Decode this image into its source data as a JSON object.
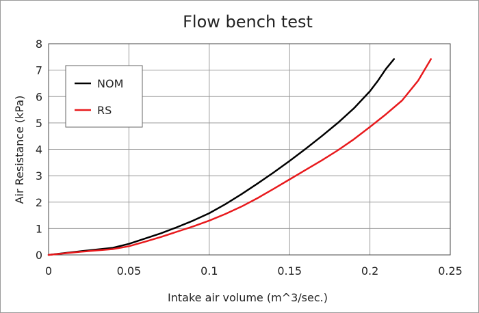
{
  "chart_data": {
    "type": "line",
    "title": "Flow bench test",
    "xlabel": "Intake air volume (m^3/sec.)",
    "ylabel": "Air Resistance (kPa)",
    "xlim": [
      0,
      0.25
    ],
    "ylim": [
      0,
      8
    ],
    "x_ticks": [
      "0",
      "0.05",
      "0.1",
      "0.15",
      "0.2",
      "0.25"
    ],
    "y_ticks": [
      "0",
      "1",
      "2",
      "3",
      "4",
      "5",
      "6",
      "7",
      "8"
    ],
    "grid": true,
    "legend_position": "top-left",
    "series": [
      {
        "name": "NOM",
        "color": "#000000",
        "points": [
          [
            0,
            0
          ],
          [
            0.02,
            0.14
          ],
          [
            0.04,
            0.27
          ],
          [
            0.05,
            0.42
          ],
          [
            0.06,
            0.62
          ],
          [
            0.07,
            0.82
          ],
          [
            0.08,
            1.05
          ],
          [
            0.09,
            1.3
          ],
          [
            0.1,
            1.58
          ],
          [
            0.11,
            1.92
          ],
          [
            0.12,
            2.3
          ],
          [
            0.13,
            2.7
          ],
          [
            0.14,
            3.12
          ],
          [
            0.15,
            3.56
          ],
          [
            0.16,
            4.02
          ],
          [
            0.17,
            4.5
          ],
          [
            0.18,
            5.0
          ],
          [
            0.19,
            5.55
          ],
          [
            0.2,
            6.2
          ],
          [
            0.205,
            6.6
          ],
          [
            0.21,
            7.05
          ],
          [
            0.215,
            7.42
          ]
        ]
      },
      {
        "name": "RS",
        "color": "#e8191c",
        "points": [
          [
            0,
            0
          ],
          [
            0.02,
            0.12
          ],
          [
            0.04,
            0.22
          ],
          [
            0.05,
            0.33
          ],
          [
            0.06,
            0.5
          ],
          [
            0.07,
            0.68
          ],
          [
            0.08,
            0.88
          ],
          [
            0.09,
            1.08
          ],
          [
            0.1,
            1.3
          ],
          [
            0.11,
            1.55
          ],
          [
            0.12,
            1.83
          ],
          [
            0.13,
            2.15
          ],
          [
            0.14,
            2.5
          ],
          [
            0.15,
            2.86
          ],
          [
            0.16,
            3.22
          ],
          [
            0.17,
            3.58
          ],
          [
            0.18,
            3.96
          ],
          [
            0.19,
            4.38
          ],
          [
            0.2,
            4.85
          ],
          [
            0.21,
            5.33
          ],
          [
            0.22,
            5.85
          ],
          [
            0.23,
            6.6
          ],
          [
            0.238,
            7.42
          ]
        ]
      }
    ]
  }
}
